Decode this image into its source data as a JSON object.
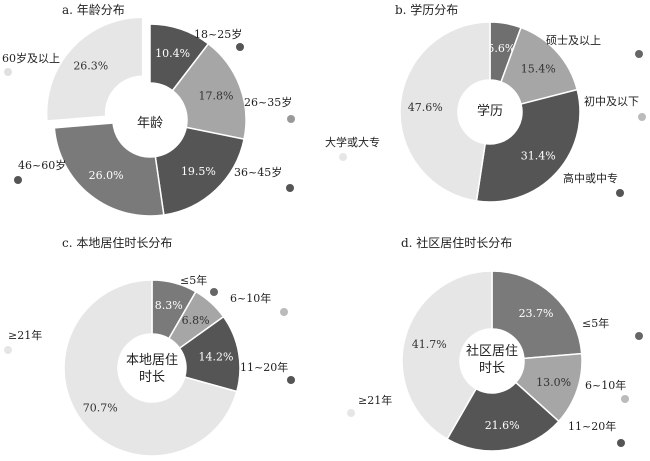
{
  "colors": {
    "dark": "#555555",
    "mid": "#a6a6a6",
    "light": "#e6e6e6",
    "hole": "#ffffff"
  },
  "chart_data": [
    {
      "type": "pie",
      "title": "a. 年龄分布",
      "center": "年龄",
      "slices": [
        {
          "label": "18~25岁",
          "value": 10.4,
          "display": "10.4%",
          "color": "#555555"
        },
        {
          "label": "26~35岁",
          "value": 17.8,
          "display": "17.8%",
          "color": "#a6a6a6"
        },
        {
          "label": "36~45岁",
          "value": 19.5,
          "display": "19.5%",
          "color": "#555555"
        },
        {
          "label": "46~60岁",
          "value": 26.0,
          "display": "26.0%",
          "color": "#7a7a7a"
        },
        {
          "label": "60岁及以上",
          "value": 26.3,
          "display": "26.3%",
          "color": "#e6e6e6"
        }
      ]
    },
    {
      "type": "pie",
      "title": "b. 学历分布",
      "center": "学历",
      "slices": [
        {
          "label": "硕士及以上",
          "value": 5.6,
          "display": "5.6%",
          "color": "#6f6f6f"
        },
        {
          "label": "初中及以下",
          "value": 15.4,
          "display": "15.4%",
          "color": "#a6a6a6"
        },
        {
          "label": "高中或中专",
          "value": 31.4,
          "display": "31.4%",
          "color": "#555555"
        },
        {
          "label": "大学或大专",
          "value": 47.6,
          "display": "47.6%",
          "color": "#e6e6e6"
        }
      ]
    },
    {
      "type": "pie",
      "title": "c. 本地居住时长分布",
      "center": "本地居住时长",
      "slices": [
        {
          "label": "≤5年",
          "value": 8.3,
          "display": "8.3%",
          "color": "#7a7a7a"
        },
        {
          "label": "6~10年",
          "value": 6.8,
          "display": "6.8%",
          "color": "#a6a6a6"
        },
        {
          "label": "11~20年",
          "value": 14.2,
          "display": "14.2%",
          "color": "#555555"
        },
        {
          "label": "≥21年",
          "value": 70.7,
          "display": "70.7%",
          "color": "#e6e6e6"
        }
      ]
    },
    {
      "type": "pie",
      "title": "d. 社区居住时长分布",
      "center": "社区居住时长",
      "slices": [
        {
          "label": "≤5年",
          "value": 23.7,
          "display": "23.7%",
          "color": "#7a7a7a"
        },
        {
          "label": "6~10年",
          "value": 13.0,
          "display": "13.0%",
          "color": "#a6a6a6"
        },
        {
          "label": "11~20年",
          "value": 21.6,
          "display": "21.6%",
          "color": "#555555"
        },
        {
          "label": "≥21年",
          "value": 41.7,
          "display": "41.7%",
          "color": "#e6e6e6"
        }
      ]
    }
  ]
}
